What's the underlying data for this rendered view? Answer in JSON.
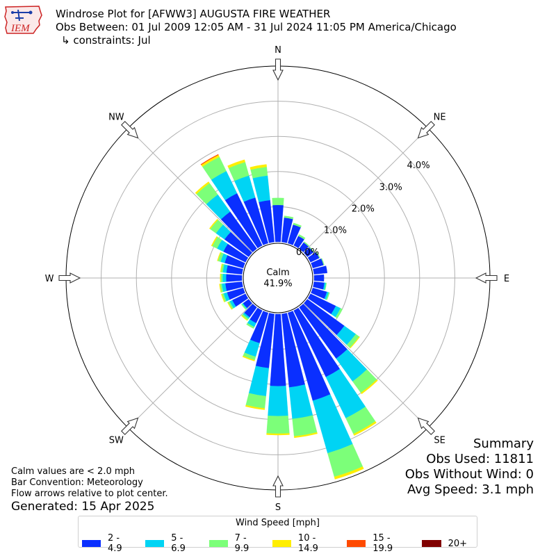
{
  "header": {
    "title": "Windrose Plot for [AFWW3] AUGUSTA FIRE WEATHER",
    "obs_between": "Obs Between: 01 Jul 2009 12:05 AM - 31 Jul 2024 11:05 PM America/Chicago",
    "constraints": "↳ constraints: Jul"
  },
  "logo": {
    "text": "IEM",
    "icon": "iowa-state-map-icon"
  },
  "chart_data": {
    "type": "windrose",
    "directions_deg": [
      0,
      10,
      20,
      30,
      40,
      50,
      60,
      70,
      80,
      90,
      100,
      110,
      120,
      130,
      140,
      150,
      160,
      170,
      180,
      190,
      200,
      210,
      220,
      230,
      240,
      250,
      260,
      270,
      280,
      290,
      300,
      310,
      320,
      330,
      340,
      350
    ],
    "speed_bins": [
      "2 - 4.9",
      "5 - 6.9",
      "7 - 9.9",
      "10 - 14.9",
      "15 - 19.9",
      "20+"
    ],
    "speed_colors": [
      "#0a2fff",
      "#00d4f4",
      "#7cff79",
      "#ffee00",
      "#ff4a00",
      "#800000"
    ],
    "values_pct": [
      [
        1.05,
        0.0,
        0.2,
        0.0,
        0.0,
        0.0
      ],
      [
        0.7,
        0.0,
        0.05,
        0.0,
        0.0,
        0.0
      ],
      [
        0.55,
        0.0,
        0.05,
        0.0,
        0.0,
        0.0
      ],
      [
        0.3,
        0.0,
        0.05,
        0.0,
        0.0,
        0.0
      ],
      [
        0.22,
        0.0,
        0.03,
        0.0,
        0.0,
        0.0
      ],
      [
        0.22,
        0.0,
        0.02,
        0.0,
        0.0,
        0.0
      ],
      [
        0.28,
        0.0,
        0.02,
        0.0,
        0.0,
        0.0
      ],
      [
        0.32,
        0.0,
        0.02,
        0.0,
        0.0,
        0.0
      ],
      [
        0.38,
        0.0,
        0.0,
        0.0,
        0.0,
        0.0
      ],
      [
        0.28,
        0.0,
        0.0,
        0.0,
        0.0,
        0.0
      ],
      [
        0.3,
        0.04,
        0.02,
        0.0,
        0.0,
        0.0
      ],
      [
        0.42,
        0.05,
        0.03,
        0.0,
        0.0,
        0.0
      ],
      [
        0.8,
        0.15,
        0.06,
        0.0,
        0.0,
        0.0
      ],
      [
        1.3,
        0.4,
        0.12,
        0.02,
        0.0,
        0.0
      ],
      [
        1.8,
        0.8,
        0.4,
        0.04,
        0.0,
        0.0
      ],
      [
        2.1,
        1.3,
        0.5,
        0.05,
        0.0,
        0.0
      ],
      [
        2.6,
        1.55,
        0.7,
        0.07,
        0.0,
        0.0
      ],
      [
        2.1,
        0.9,
        0.5,
        0.04,
        0.0,
        0.0
      ],
      [
        2.05,
        0.85,
        0.5,
        0.04,
        0.0,
        0.0
      ],
      [
        1.55,
        0.8,
        0.35,
        0.04,
        0.0,
        0.0
      ],
      [
        0.9,
        0.4,
        0.1,
        0.03,
        0.0,
        0.0
      ],
      [
        0.4,
        0.12,
        0.05,
        0.0,
        0.0,
        0.0
      ],
      [
        0.35,
        0.05,
        0.05,
        0.02,
        0.0,
        0.0
      ],
      [
        0.2,
        0.03,
        0.03,
        0.0,
        0.0,
        0.0
      ],
      [
        0.42,
        0.08,
        0.05,
        0.02,
        0.0,
        0.0
      ],
      [
        0.48,
        0.1,
        0.05,
        0.02,
        0.0,
        0.0
      ],
      [
        0.48,
        0.1,
        0.05,
        0.02,
        0.0,
        0.0
      ],
      [
        0.45,
        0.1,
        0.05,
        0.02,
        0.0,
        0.0
      ],
      [
        0.45,
        0.1,
        0.05,
        0.02,
        0.0,
        0.0
      ],
      [
        0.55,
        0.12,
        0.08,
        0.02,
        0.0,
        0.0
      ],
      [
        0.7,
        0.2,
        0.15,
        0.03,
        0.0,
        0.0
      ],
      [
        0.85,
        0.3,
        0.2,
        0.03,
        0.0,
        0.0
      ],
      [
        1.3,
        0.6,
        0.4,
        0.05,
        0.0,
        0.0
      ],
      [
        1.65,
        0.7,
        0.45,
        0.06,
        0.02,
        0.0
      ],
      [
        1.35,
        0.65,
        0.4,
        0.07,
        0.0,
        0.0
      ],
      [
        1.2,
        0.7,
        0.25,
        0.07,
        0.0,
        0.0
      ]
    ],
    "radial_ticks": [
      "0.0%",
      "1.0%",
      "2.0%",
      "3.0%",
      "4.0%"
    ],
    "radial_range_pct": [
      0,
      5.0
    ],
    "compass_labels": [
      "N",
      "NE",
      "E",
      "SE",
      "S",
      "SW",
      "W",
      "NW"
    ],
    "calm_label": "Calm",
    "calm_value": "41.9%",
    "legend_title": "Wind Speed [mph]"
  },
  "notes": [
    "Calm values are < 2.0 mph",
    "Bar Convention: Meteorology",
    "Flow arrows relative to plot center."
  ],
  "generated": "Generated: 15 Apr 2025",
  "summary": {
    "title": "Summary",
    "obs_used": "Obs Used: 11811",
    "obs_without_wind": "Obs Without Wind: 0",
    "avg_speed": "Avg Speed: 3.1 mph"
  }
}
